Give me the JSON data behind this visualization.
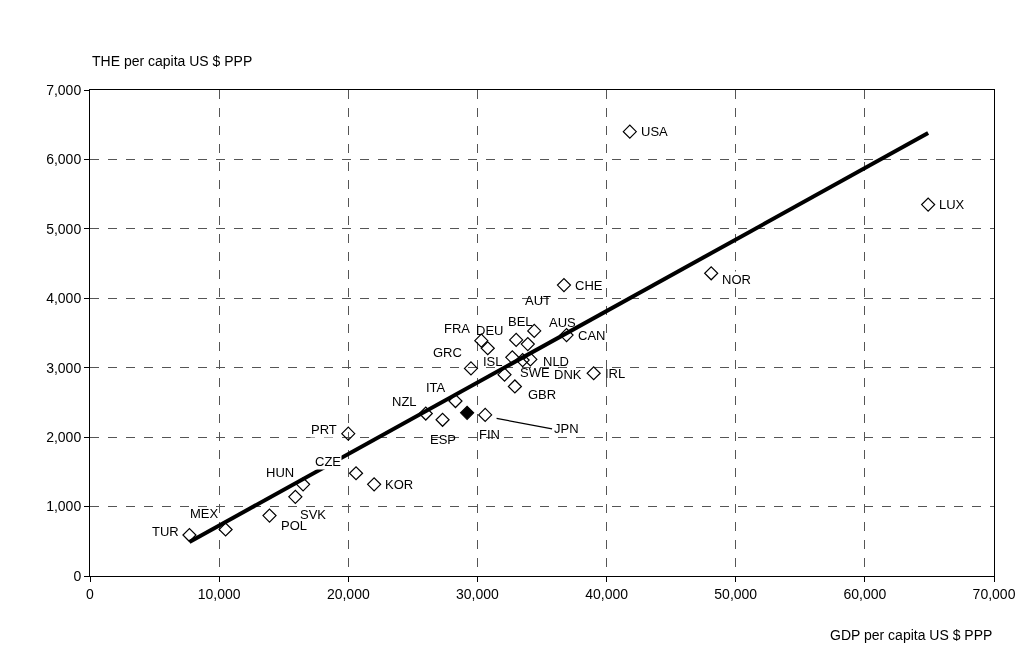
{
  "chart_data": {
    "type": "scatter",
    "xlabel": "GDP per capita US $ PPP",
    "ylabel": "THE per capita US $ PPP",
    "xlim": [
      0,
      70000
    ],
    "ylim": [
      0,
      7000
    ],
    "xticks": [
      0,
      {
        "value": 10000,
        "label": "10,000"
      },
      {
        "value": 20000,
        "label": "20,000"
      },
      {
        "value": 30000,
        "label": "30,000"
      },
      {
        "value": 40000,
        "label": "40,000"
      },
      {
        "value": 50000,
        "label": "50,000"
      },
      {
        "value": 60000,
        "label": "60,000"
      },
      {
        "value": 70000,
        "label": "70,000"
      }
    ],
    "yticks": [
      0,
      {
        "value": 1000,
        "label": "1,000"
      },
      {
        "value": 2000,
        "label": "2,000"
      },
      {
        "value": 3000,
        "label": "3,000"
      },
      {
        "value": 4000,
        "label": "4,000"
      },
      {
        "value": 5000,
        "label": "5,000"
      },
      {
        "value": 6000,
        "label": "6,000"
      },
      {
        "value": 7000,
        "label": "7,000"
      }
    ],
    "grid": true,
    "marker": "diamond",
    "series": [
      {
        "color": "#000000",
        "x": [
          7700,
          10500,
          13900,
          15900,
          16500,
          20600,
          22000,
          20000,
          26000,
          27300,
          28300,
          30600,
          29500,
          30300,
          30800,
          33000,
          34400,
          33900,
          36900,
          32700,
          33500,
          34100,
          32100,
          32900,
          39000,
          36700,
          48100,
          41800,
          64900
        ],
        "values": [
          590,
          670,
          870,
          1140,
          1320,
          1480,
          1320,
          2050,
          2340,
          2250,
          2520,
          2320,
          2990,
          3390,
          3280,
          3400,
          3530,
          3340,
          3470,
          3150,
          3110,
          3120,
          2900,
          2730,
          2920,
          4190,
          4360,
          6400,
          5350
        ]
      },
      {
        "color": "#000000",
        "x": [
          29200
        ],
        "values": [
          2350
        ]
      },
      {
        "type": "line",
        "color": "#000000",
        "marker": "none",
        "line_style": "solid",
        "x": [
          7700,
          64900
        ],
        "values": [
          490,
          6380
        ]
      }
    ],
    "annotations": [
      {
        "text": "TUR",
        "x": 7700,
        "y": 590
      },
      {
        "text": "MEX",
        "x": 10500,
        "y": 670
      },
      {
        "text": "POL",
        "x": 13900,
        "y": 870
      },
      {
        "text": "SVK",
        "x": 15900,
        "y": 1140
      },
      {
        "text": "HUN",
        "x": 16500,
        "y": 1320
      },
      {
        "text": "CZE",
        "x": 20600,
        "y": 1480
      },
      {
        "text": "KOR",
        "x": 22000,
        "y": 1320
      },
      {
        "text": "PRT",
        "x": 20000,
        "y": 2050
      },
      {
        "text": "NZL",
        "x": 26000,
        "y": 2340
      },
      {
        "text": "ESP",
        "x": 27300,
        "y": 2250
      },
      {
        "text": "ITA",
        "x": 28300,
        "y": 2520
      },
      {
        "text": "FIN",
        "x": 30600,
        "y": 2320
      },
      {
        "text": "GRC",
        "x": 29500,
        "y": 2990
      },
      {
        "text": "FRA",
        "x": 30300,
        "y": 3390
      },
      {
        "text": "DEU",
        "x": 30800,
        "y": 3280
      },
      {
        "text": "BEL",
        "x": 33000,
        "y": 3400
      },
      {
        "text": "AUT",
        "x": 34400,
        "y": 3530
      },
      {
        "text": "AUS",
        "x": 33900,
        "y": 3340
      },
      {
        "text": "CAN",
        "x": 36900,
        "y": 3470
      },
      {
        "text": "ISL",
        "x": 32700,
        "y": 3150
      },
      {
        "text": "DNK",
        "x": 33500,
        "y": 3110
      },
      {
        "text": "NLD",
        "x": 34100,
        "y": 3120
      },
      {
        "text": "SWE",
        "x": 32100,
        "y": 2900
      },
      {
        "text": "GBR",
        "x": 32900,
        "y": 2730
      },
      {
        "text": "IRL",
        "x": 39000,
        "y": 2920
      },
      {
        "text": "CHE",
        "x": 36700,
        "y": 4190
      },
      {
        "text": "NOR",
        "x": 48100,
        "y": 4360
      },
      {
        "text": "USA",
        "x": 41800,
        "y": 6400
      },
      {
        "text": "LUX",
        "x": 64900,
        "y": 5350
      },
      {
        "text": "JPN",
        "x": 29200,
        "y": 2350
      }
    ]
  }
}
